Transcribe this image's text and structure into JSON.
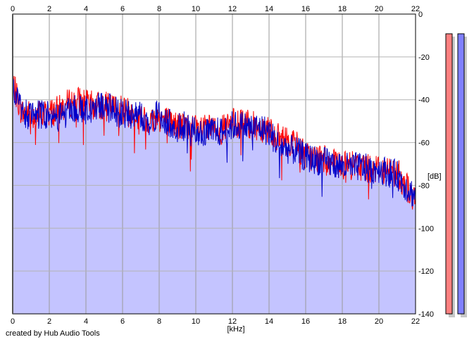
{
  "footer": {
    "credit": "created by Hub Audio Tools"
  },
  "chart_data": {
    "type": "line",
    "title": "",
    "xlabel": "[kHz]",
    "ylabel": "[dB]",
    "xlim": [
      0,
      22
    ],
    "ylim": [
      -140,
      0
    ],
    "x_ticks": [
      0,
      2,
      4,
      6,
      8,
      10,
      12,
      14,
      16,
      18,
      20,
      22
    ],
    "y_ticks": [
      0,
      -20,
      -40,
      -60,
      -80,
      -100,
      -120,
      -140
    ],
    "y_tick_labels": [
      "0",
      "-20",
      "-40",
      "-60",
      "-80",
      "-100",
      "-120",
      "-140"
    ],
    "grid": true,
    "fill_color": "#c4c4ff",
    "series": [
      {
        "color": "#ff0000",
        "x": [
          0,
          0.5,
          1,
          1.5,
          2,
          2.5,
          3,
          3.5,
          4,
          4.5,
          5,
          5.5,
          6,
          6.5,
          7,
          7.5,
          8,
          8.5,
          9,
          9.5,
          10,
          10.5,
          11,
          11.5,
          12,
          12.5,
          13,
          13.5,
          14,
          14.5,
          15,
          15.5,
          16,
          16.5,
          17,
          17.5,
          18,
          18.5,
          19,
          19.5,
          20,
          20.5,
          21,
          21.5,
          22
        ],
        "values": [
          -32,
          -46,
          -47,
          -47,
          -46,
          -45,
          -42,
          -40,
          -42,
          -43,
          -43,
          -44,
          -45,
          -47,
          -49,
          -50,
          -48,
          -50,
          -52,
          -53,
          -54,
          -54,
          -54,
          -54,
          -51,
          -51,
          -52,
          -53,
          -53,
          -58,
          -59,
          -61,
          -66,
          -67,
          -68,
          -70,
          -71,
          -71,
          -71,
          -72,
          -72,
          -73,
          -74,
          -80,
          -89
        ]
      },
      {
        "color": "#0000c8",
        "x": [
          0,
          0.5,
          1,
          1.5,
          2,
          2.5,
          3,
          3.5,
          4,
          4.5,
          5,
          5.5,
          6,
          6.5,
          7,
          7.5,
          8,
          8.5,
          9,
          9.5,
          10,
          10.5,
          11,
          11.5,
          12,
          12.5,
          13,
          13.5,
          14,
          14.5,
          15,
          15.5,
          16,
          16.5,
          17,
          17.5,
          18,
          18.5,
          19,
          19.5,
          20,
          20.5,
          21,
          21.5,
          22
        ],
        "values": [
          -35,
          -46,
          -48,
          -47,
          -47,
          -48,
          -46,
          -44,
          -45,
          -44,
          -42,
          -45,
          -47,
          -47,
          -48,
          -51,
          -46,
          -51,
          -53,
          -52,
          -54,
          -56,
          -55,
          -55,
          -52,
          -52,
          -53,
          -53,
          -55,
          -61,
          -63,
          -64,
          -67,
          -68,
          -69,
          -70,
          -71,
          -72,
          -71,
          -73,
          -72,
          -74,
          -75,
          -81,
          -85
        ]
      }
    ]
  }
}
